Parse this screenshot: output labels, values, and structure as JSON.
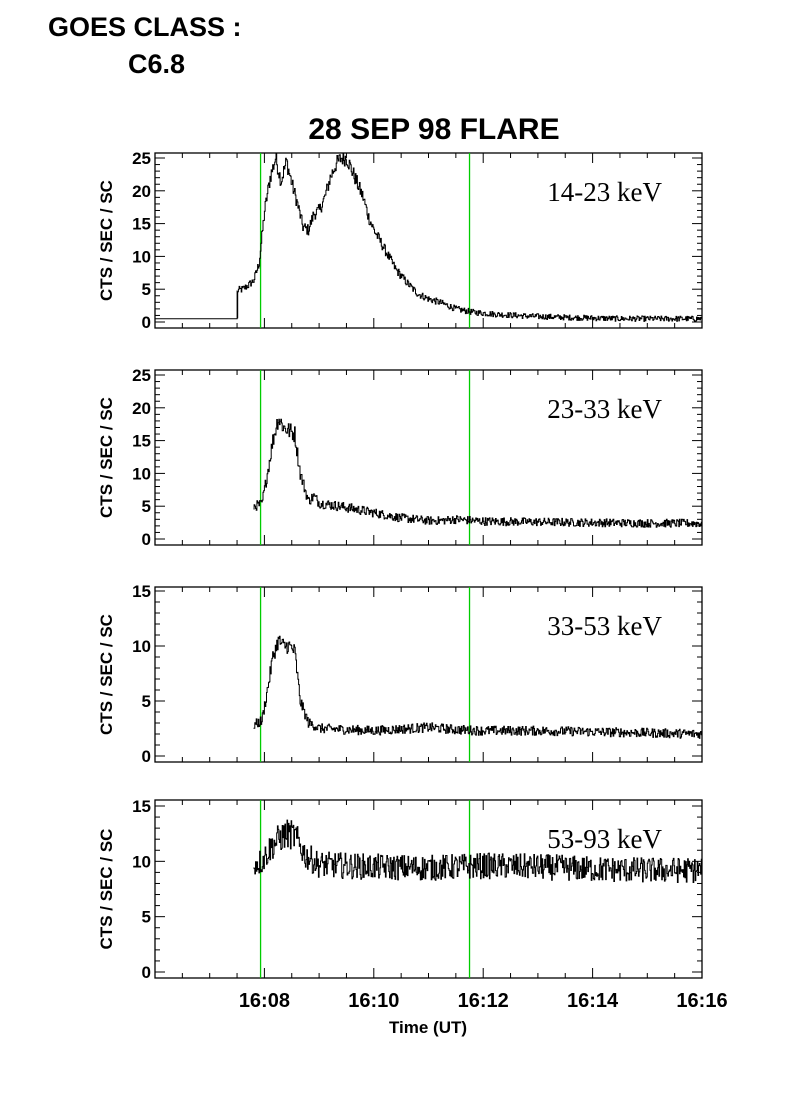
{
  "header": {
    "goes_label": "GOES CLASS :",
    "goes_value": "C6.8"
  },
  "chart_data": {
    "type": "line",
    "title": "28 SEP 98 FLARE",
    "xlabel": "Time (UT)",
    "x_ticks": [
      "16:08",
      "16:10",
      "16:12",
      "16:14",
      "16:16"
    ],
    "x_range_min": [
      6,
      16
    ],
    "marker_color": "#00cc00",
    "marker_times_min": [
      7.93,
      11.75
    ],
    "panels": [
      {
        "name": "14-23 keV",
        "ylabel": "CTS / SEC / SC",
        "ylim": [
          0,
          25
        ],
        "yticks": [
          "0",
          "5",
          "10",
          "15",
          "20",
          "25"
        ],
        "x_min": [
          6.0,
          7.5,
          7.5,
          7.6,
          7.7,
          7.8,
          7.9,
          8.0,
          8.1,
          8.2,
          8.3,
          8.4,
          8.5,
          8.6,
          8.7,
          8.8,
          8.9,
          9.0,
          9.1,
          9.2,
          9.3,
          9.4,
          9.5,
          9.6,
          9.7,
          9.8,
          9.9,
          10.0,
          10.2,
          10.4,
          10.6,
          10.8,
          11.0,
          11.2,
          11.5,
          11.8,
          12.2,
          12.8,
          13.5,
          14.5,
          15.0,
          16.0
        ],
        "y": [
          0.5,
          0.5,
          4.8,
          5.0,
          5.6,
          6.3,
          9.0,
          17.0,
          22.0,
          25.0,
          21.5,
          24.5,
          21.0,
          18.0,
          14.5,
          14.0,
          16.5,
          17.0,
          19.0,
          22.0,
          24.0,
          25.0,
          25.0,
          23.0,
          21.0,
          19.0,
          16.0,
          14.0,
          11.0,
          8.0,
          6.0,
          4.3,
          3.5,
          3.0,
          2.0,
          1.5,
          1.2,
          0.9,
          0.7,
          0.5,
          0.5,
          0.5
        ],
        "noise": 0.4
      },
      {
        "name": "23-33 keV",
        "ylabel": "CTS / SEC / SC",
        "ylim": [
          0,
          25
        ],
        "yticks": [
          "0",
          "5",
          "10",
          "15",
          "20",
          "25"
        ],
        "x_min": [
          7.8,
          7.95,
          8.05,
          8.15,
          8.25,
          8.35,
          8.45,
          8.55,
          8.65,
          8.8,
          8.9,
          9.0,
          9.5,
          10.0,
          10.5,
          11.0,
          11.2,
          11.5,
          12.0,
          13.0,
          14.0,
          15.0,
          16.0
        ],
        "y": [
          5.0,
          5.3,
          10.0,
          15.0,
          18.5,
          17.0,
          16.5,
          16.0,
          10.0,
          5.8,
          6.5,
          5.5,
          4.8,
          4.0,
          3.2,
          2.8,
          2.8,
          3.0,
          2.7,
          2.6,
          2.5,
          2.4,
          2.4
        ],
        "noise": 0.5
      },
      {
        "name": "33-53 keV",
        "ylabel": "CTS / SEC / SC",
        "ylim": [
          0,
          15
        ],
        "yticks": [
          "0",
          "5",
          "10",
          "15"
        ],
        "x_min": [
          7.8,
          7.95,
          8.05,
          8.15,
          8.25,
          8.35,
          8.45,
          8.55,
          8.65,
          8.8,
          8.9,
          9.0,
          10.0,
          11.0,
          11.5,
          12.0,
          13.0,
          14.0,
          15.0,
          16.0
        ],
        "y": [
          2.8,
          3.2,
          6.0,
          9.0,
          10.5,
          10.0,
          10.0,
          9.5,
          5.0,
          3.0,
          2.8,
          2.5,
          2.3,
          2.6,
          2.4,
          2.3,
          2.3,
          2.2,
          2.1,
          2.0
        ],
        "noise": 0.35
      },
      {
        "name": "53-93 keV",
        "ylabel": "CTS / SEC / SC",
        "ylim": [
          0,
          15
        ],
        "yticks": [
          "0",
          "5",
          "10",
          "15"
        ],
        "x_min": [
          7.8,
          7.95,
          8.1,
          8.25,
          8.4,
          8.55,
          8.75,
          9.0,
          10.0,
          11.0,
          12.0,
          13.0,
          14.0,
          15.0,
          16.0
        ],
        "y": [
          9.8,
          10.0,
          11.2,
          12.0,
          12.5,
          12.3,
          10.5,
          9.7,
          9.5,
          9.4,
          9.6,
          9.5,
          9.3,
          9.2,
          9.2
        ],
        "noise": 0.6
      }
    ]
  }
}
